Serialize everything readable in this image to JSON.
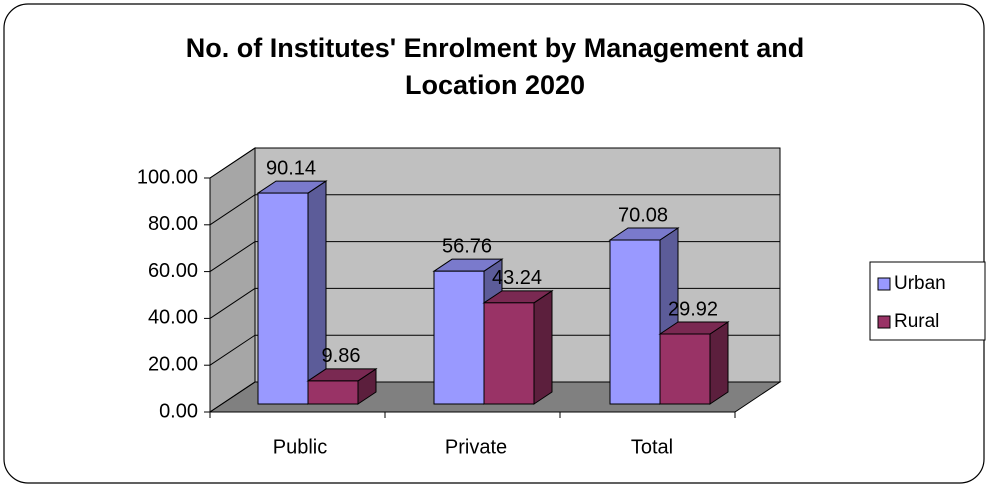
{
  "chart_data": {
    "type": "bar3d",
    "title": "No. of Institutes' Enrolment by Management and Location 2020",
    "categories": [
      "Public",
      "Private",
      "Total"
    ],
    "series": [
      {
        "name": "Urban",
        "color": "#9999ff",
        "values": [
          90.14,
          56.76,
          70.08
        ]
      },
      {
        "name": "Rural",
        "color": "#993366",
        "values": [
          9.86,
          43.24,
          29.92
        ]
      }
    ],
    "ylim": [
      0,
      100
    ],
    "yticks": [
      {
        "value": 0,
        "label": "0.00"
      },
      {
        "value": 20,
        "label": "20.00"
      },
      {
        "value": 40,
        "label": "40.00"
      },
      {
        "value": 60,
        "label": "60.00"
      },
      {
        "value": 80,
        "label": "80.00"
      },
      {
        "value": 100,
        "label": "100.00"
      }
    ],
    "grid": true,
    "legend": "right"
  }
}
